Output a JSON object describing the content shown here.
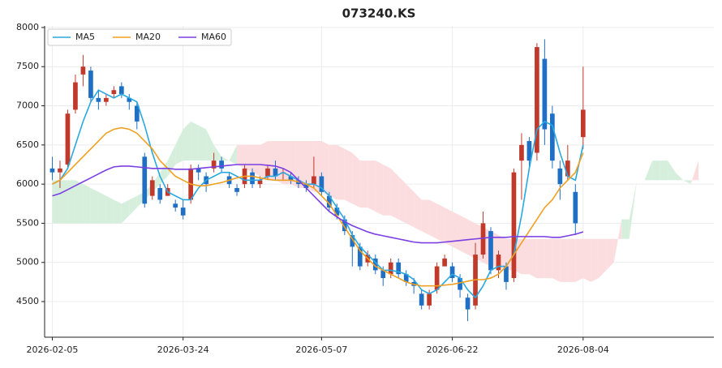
{
  "chart_data": {
    "type": "candlestick",
    "title": "073240.KS",
    "xlim": [
      -1,
      86
    ],
    "xticks": [
      {
        "value": 0,
        "label": "2026-02-05"
      },
      {
        "value": 17,
        "label": "2026-03-24"
      },
      {
        "value": 35,
        "label": "2026-05-07"
      },
      {
        "value": 52,
        "label": "2026-06-22"
      },
      {
        "value": 69,
        "label": "2026-08-04"
      }
    ],
    "ylim": [
      4045,
      8020
    ],
    "yticks": [
      4500,
      5000,
      5500,
      6000,
      6500,
      7000,
      7500,
      8000
    ],
    "grid": true,
    "legend": "upper left",
    "up_color": "#c0392b",
    "down_color": "#1f6fc5",
    "ohlc": [
      [
        6200,
        6350,
        6050,
        6150
      ],
      [
        6150,
        6300,
        5950,
        6200
      ],
      [
        6250,
        6950,
        6200,
        6900
      ],
      [
        6950,
        7400,
        6900,
        7300
      ],
      [
        7400,
        7650,
        7250,
        7500
      ],
      [
        7450,
        7500,
        7050,
        7100
      ],
      [
        7100,
        7200,
        6950,
        7050
      ],
      [
        7050,
        7150,
        7000,
        7100
      ],
      [
        7150,
        7250,
        7100,
        7200
      ],
      [
        7250,
        7300,
        7100,
        7150
      ],
      [
        7100,
        7150,
        6950,
        7050
      ],
      [
        7000,
        7050,
        6700,
        6800
      ],
      [
        6350,
        6400,
        5700,
        5750
      ],
      [
        5850,
        6100,
        5800,
        6050
      ],
      [
        5950,
        6000,
        5750,
        5800
      ],
      [
        5850,
        6000,
        5850,
        5950
      ],
      [
        5750,
        5800,
        5650,
        5700
      ],
      [
        5700,
        5800,
        5550,
        5600
      ],
      [
        5800,
        6250,
        5750,
        6200
      ],
      [
        6200,
        6250,
        6050,
        6150
      ],
      [
        6100,
        6150,
        5900,
        6000
      ],
      [
        6200,
        6400,
        6150,
        6300
      ],
      [
        6300,
        6350,
        6150,
        6200
      ],
      [
        6100,
        6150,
        5950,
        6000
      ],
      [
        5950,
        6000,
        5850,
        5900
      ],
      [
        6000,
        6250,
        5950,
        6200
      ],
      [
        6150,
        6200,
        5950,
        6000
      ],
      [
        6000,
        6100,
        5950,
        6050
      ],
      [
        6100,
        6250,
        6050,
        6200
      ],
      [
        6200,
        6300,
        6050,
        6100
      ],
      [
        6150,
        6200,
        6050,
        6150
      ],
      [
        6100,
        6150,
        6000,
        6050
      ],
      [
        6050,
        6100,
        5950,
        6000
      ],
      [
        6000,
        6050,
        5900,
        5950
      ],
      [
        6000,
        6350,
        5950,
        6100
      ],
      [
        6100,
        6150,
        5850,
        5900
      ],
      [
        5850,
        5900,
        5650,
        5700
      ],
      [
        5700,
        5750,
        5550,
        5600
      ],
      [
        5550,
        5600,
        5350,
        5400
      ],
      [
        5350,
        5400,
        4950,
        5200
      ],
      [
        5200,
        5250,
        4900,
        4950
      ],
      [
        5000,
        5150,
        4950,
        5100
      ],
      [
        5050,
        5100,
        4850,
        4900
      ],
      [
        4900,
        4950,
        4700,
        4800
      ],
      [
        4850,
        5050,
        4800,
        5000
      ],
      [
        5000,
        5050,
        4800,
        4850
      ],
      [
        4850,
        4900,
        4700,
        4750
      ],
      [
        4750,
        4800,
        4600,
        4700
      ],
      [
        4600,
        4650,
        4400,
        4450
      ],
      [
        4450,
        4650,
        4400,
        4600
      ],
      [
        4650,
        5000,
        4600,
        4950
      ],
      [
        4950,
        5100,
        4950,
        5050
      ],
      [
        4950,
        5000,
        4750,
        4800
      ],
      [
        4800,
        4850,
        4550,
        4650
      ],
      [
        4550,
        4600,
        4250,
        4400
      ],
      [
        4450,
        5250,
        4400,
        5100
      ],
      [
        5100,
        5650,
        5050,
        5500
      ],
      [
        5400,
        5450,
        4850,
        4900
      ],
      [
        4900,
        5150,
        4800,
        5100
      ],
      [
        4950,
        5000,
        4650,
        4750
      ],
      [
        4800,
        6200,
        4750,
        6150
      ],
      [
        6300,
        6650,
        5800,
        6500
      ],
      [
        6550,
        6600,
        6200,
        6300
      ],
      [
        6400,
        7800,
        6300,
        7750
      ],
      [
        7600,
        7850,
        6500,
        6700
      ],
      [
        6900,
        7000,
        6200,
        6300
      ],
      [
        6200,
        6300,
        5800,
        6000
      ],
      [
        6100,
        6500,
        6050,
        6300
      ],
      [
        5900,
        6000,
        5350,
        5500
      ],
      [
        6600,
        7500,
        6450,
        6950
      ]
    ],
    "series": [
      {
        "name": "MA5",
        "color": "#29a8e0",
        "values": [
          6000,
          6050,
          6200,
          6500,
          6800,
          7050,
          7200,
          7150,
          7100,
          7150,
          7100,
          7050,
          6750,
          6400,
          6100,
          5900,
          5850,
          5800,
          5800,
          5950,
          6050,
          6100,
          6150,
          6150,
          6100,
          6050,
          6050,
          6050,
          6100,
          6100,
          6150,
          6100,
          6050,
          6000,
          6000,
          5950,
          5850,
          5700,
          5550,
          5350,
          5200,
          5100,
          5000,
          4900,
          4900,
          4880,
          4850,
          4780,
          4650,
          4600,
          4650,
          4750,
          4850,
          4800,
          4650,
          4550,
          4700,
          4900,
          4950,
          4950,
          5100,
          5600,
          6200,
          6700,
          6800,
          6750,
          6400,
          6100,
          6050,
          6500
        ]
      },
      {
        "name": "MA20",
        "color": "#f0a020",
        "values": [
          6000,
          6050,
          6150,
          6250,
          6350,
          6450,
          6550,
          6650,
          6700,
          6720,
          6700,
          6650,
          6550,
          6450,
          6300,
          6200,
          6100,
          6050,
          6000,
          5980,
          5980,
          6000,
          6020,
          6050,
          6080,
          6100,
          6100,
          6080,
          6060,
          6050,
          6050,
          6050,
          6030,
          6000,
          5950,
          5850,
          5750,
          5600,
          5450,
          5300,
          5150,
          5050,
          4950,
          4900,
          4850,
          4800,
          4750,
          4720,
          4700,
          4700,
          4700,
          4710,
          4720,
          4740,
          4760,
          4780,
          4780,
          4800,
          4850,
          4950,
          5100,
          5250,
          5400,
          5550,
          5700,
          5800,
          5950,
          6050,
          6150,
          6400
        ]
      },
      {
        "name": "MA60",
        "color": "#7b3fe4",
        "values": [
          5850,
          5880,
          5930,
          5980,
          6030,
          6080,
          6130,
          6180,
          6220,
          6230,
          6230,
          6220,
          6210,
          6200,
          6200,
          6200,
          6190,
          6190,
          6190,
          6200,
          6210,
          6220,
          6230,
          6240,
          6250,
          6250,
          6250,
          6250,
          6240,
          6230,
          6200,
          6150,
          6050,
          5950,
          5850,
          5750,
          5650,
          5580,
          5520,
          5470,
          5430,
          5390,
          5360,
          5340,
          5320,
          5300,
          5280,
          5260,
          5250,
          5250,
          5250,
          5260,
          5270,
          5280,
          5290,
          5300,
          5310,
          5320,
          5320,
          5320,
          5330,
          5330,
          5330,
          5330,
          5330,
          5320,
          5320,
          5340,
          5360,
          5390
        ]
      }
    ],
    "cloud": {
      "up_color": "#d6efdd",
      "down_color": "#fbdcdf",
      "span_a": [
        6050,
        6050,
        6050,
        6050,
        6000,
        5950,
        5900,
        5850,
        5800,
        5750,
        5800,
        5850,
        5900,
        6000,
        6150,
        6300,
        6500,
        6700,
        6800,
        6750,
        6700,
        6500,
        6350,
        6300,
        6250,
        6200,
        6150,
        6100,
        6050,
        6050,
        6000,
        6000,
        5950,
        5950,
        5900,
        5900,
        5850,
        5800,
        5800,
        5750,
        5700,
        5700,
        5650,
        5600,
        5600,
        5550,
        5500,
        5450,
        5400,
        5350,
        5300,
        5250,
        5200,
        5150,
        5100,
        5050,
        5000,
        4950,
        4950,
        4900,
        4900,
        4850,
        4850,
        4800,
        4800,
        4800,
        4750,
        4750,
        4750,
        4800,
        4750,
        4800,
        4900,
        5000,
        5550,
        5550,
        6050,
        6050,
        6300,
        6300,
        6300,
        6150,
        6050,
        6000,
        6300
      ],
      "span_b": [
        5500,
        5500,
        5500,
        5500,
        5500,
        5500,
        5500,
        5500,
        5500,
        5500,
        5600,
        5700,
        5800,
        5900,
        6000,
        6100,
        6250,
        6300,
        6300,
        6300,
        6300,
        6300,
        6300,
        6300,
        6500,
        6500,
        6500,
        6500,
        6550,
        6550,
        6550,
        6550,
        6550,
        6550,
        6550,
        6550,
        6500,
        6500,
        6450,
        6400,
        6300,
        6300,
        6300,
        6250,
        6200,
        6100,
        6000,
        5900,
        5800,
        5800,
        5750,
        5700,
        5650,
        5600,
        5550,
        5500,
        5450,
        5400,
        5350,
        5300,
        5300,
        5300,
        5300,
        5300,
        5300,
        5300,
        5300,
        5300,
        5300,
        5300,
        5300,
        5300,
        5300,
        5300,
        5300,
        5300,
        6050,
        6050,
        6050,
        6050,
        6050,
        6050,
        6050,
        6050,
        6050
      ]
    }
  }
}
